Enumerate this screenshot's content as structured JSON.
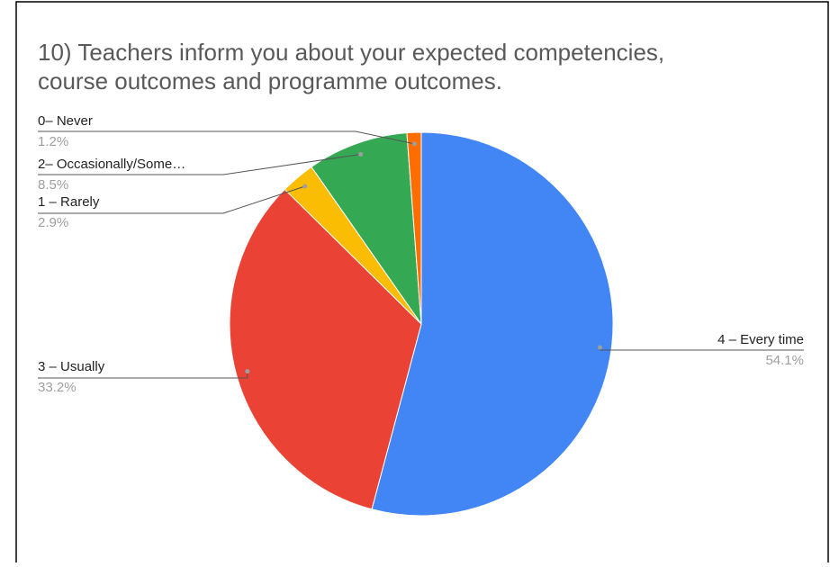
{
  "chart_data": {
    "type": "pie",
    "title": [
      "10) Teachers inform you about your expected competencies,",
      "course outcomes and programme outcomes."
    ],
    "categories": [
      "4 – Every time",
      "3 – Usually",
      "1 – Rarely",
      "2– Occasionally/Some…",
      "0– Never"
    ],
    "values": [
      54.1,
      33.2,
      2.9,
      8.5,
      1.2
    ],
    "value_labels": [
      "54.1%",
      "33.2%",
      "2.9%",
      "8.5%",
      "1.2%"
    ],
    "colors": [
      "#4285f4",
      "#ea4335",
      "#fbbc04",
      "#34a853",
      "#ff6d01"
    ]
  }
}
